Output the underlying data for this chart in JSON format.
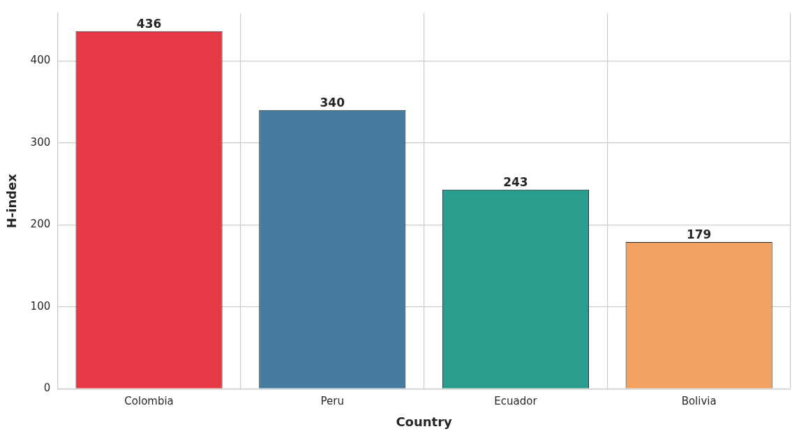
{
  "chart_data": {
    "type": "bar",
    "xlabel": "Country",
    "ylabel": "H-index",
    "categories": [
      "Colombia",
      "Peru",
      "Ecuador",
      "Bolivia"
    ],
    "values": [
      436,
      340,
      243,
      179
    ],
    "colors": [
      "#e63946",
      "#457b9d",
      "#2a9d8f",
      "#f4a261"
    ],
    "ylim": [
      0,
      458
    ],
    "yticks": [
      0,
      100,
      200,
      300,
      400
    ],
    "grid": true,
    "data_labels": true,
    "legend": false
  }
}
